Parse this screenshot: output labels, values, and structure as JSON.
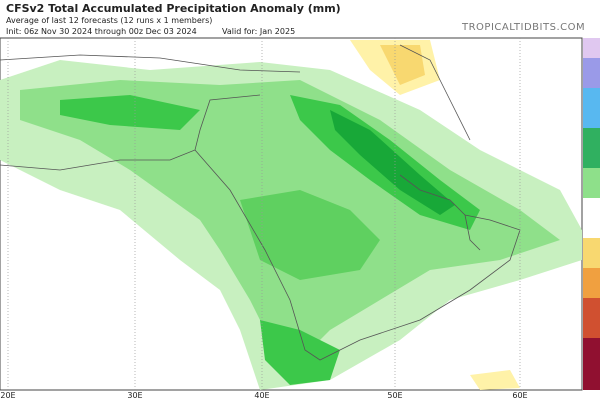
{
  "header": {
    "title": "CFSv2 Total Accumulated Precipitation Anomaly (mm)",
    "subtitle": "Average of last 12 forecasts (12 runs x 1 members)",
    "init": "Init: 06z Nov 30 2024 through 00z Dec 03 2024",
    "valid": "Valid for: Jan 2025",
    "site": "TROPICALTIDBITS.COM"
  },
  "map": {
    "lon_labels": [
      "20E",
      "30E",
      "40E",
      "50E",
      "60E"
    ]
  }
}
